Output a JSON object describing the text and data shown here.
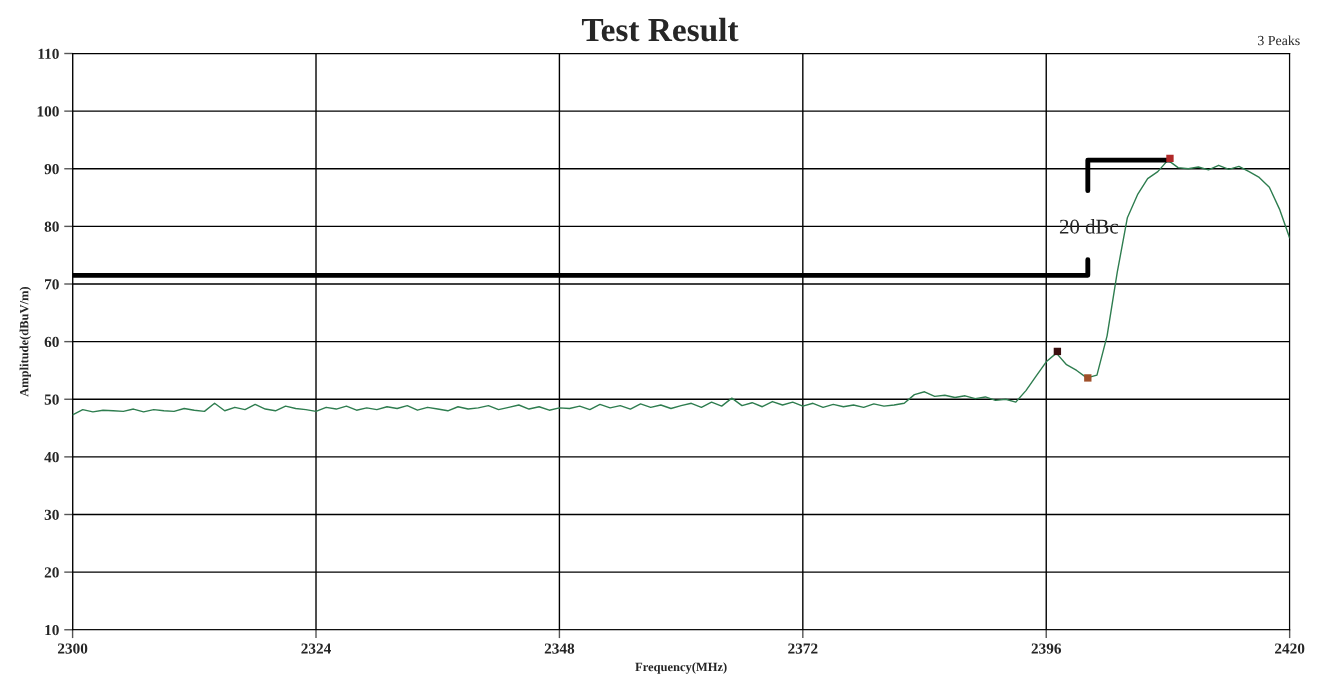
{
  "chart_data": {
    "type": "line",
    "title": "Test Result",
    "xlabel": "Frequency(MHz)",
    "ylabel": "Amplitude(dBuV/m)",
    "xlim": [
      2300,
      2420
    ],
    "xticks": [
      2300,
      2324,
      2348,
      2372,
      2396,
      2420
    ],
    "ylim": [
      10,
      110
    ],
    "yticks": [
      10,
      20,
      30,
      40,
      50,
      60,
      70,
      80,
      90,
      100,
      110
    ],
    "grid": true,
    "legend": false,
    "marker": "none",
    "line_style": "solid",
    "x": [
      2300,
      2301,
      2302,
      2303,
      2304,
      2305,
      2306,
      2307,
      2308,
      2309,
      2310,
      2311,
      2312,
      2313,
      2314,
      2315,
      2316,
      2317,
      2318,
      2319,
      2320,
      2321,
      2322,
      2323,
      2324,
      2325,
      2326,
      2327,
      2328,
      2329,
      2330,
      2331,
      2332,
      2333,
      2334,
      2335,
      2336,
      2337,
      2338,
      2339,
      2340,
      2341,
      2342,
      2343,
      2344,
      2345,
      2346,
      2347,
      2348,
      2349,
      2350,
      2351,
      2352,
      2353,
      2354,
      2355,
      2356,
      2357,
      2358,
      2359,
      2360,
      2361,
      2362,
      2363,
      2364,
      2365,
      2366,
      2367,
      2368,
      2369,
      2370,
      2371,
      2372,
      2373,
      2374,
      2375,
      2376,
      2377,
      2378,
      2379,
      2380,
      2381,
      2382,
      2383,
      2384,
      2385,
      2386,
      2387,
      2388,
      2389,
      2390,
      2391,
      2392,
      2393,
      2394,
      2395,
      2396,
      2397,
      2398,
      2399,
      2400,
      2401,
      2402,
      2403,
      2404,
      2405,
      2406,
      2407,
      2408,
      2409,
      2410,
      2411,
      2412,
      2413,
      2414,
      2415,
      2416,
      2417,
      2418,
      2419,
      2420
    ],
    "series": [
      {
        "color": "#2e7d4f",
        "values": [
          47.3,
          48.2,
          47.8,
          48.1,
          48.0,
          47.9,
          48.3,
          47.8,
          48.2,
          48.0,
          47.9,
          48.4,
          48.1,
          47.9,
          49.3,
          48.0,
          48.6,
          48.2,
          49.1,
          48.3,
          48.0,
          48.8,
          48.4,
          48.2,
          47.9,
          48.6,
          48.3,
          48.8,
          48.1,
          48.5,
          48.2,
          48.7,
          48.4,
          48.9,
          48.1,
          48.6,
          48.3,
          48.0,
          48.7,
          48.3,
          48.5,
          48.9,
          48.2,
          48.6,
          49.0,
          48.3,
          48.7,
          48.1,
          48.5,
          48.4,
          48.8,
          48.2,
          49.1,
          48.5,
          48.9,
          48.3,
          49.2,
          48.6,
          49.0,
          48.4,
          48.9,
          49.3,
          48.6,
          49.5,
          48.8,
          50.2,
          48.9,
          49.4,
          48.7,
          49.6,
          49.0,
          49.5,
          48.8,
          49.3,
          48.6,
          49.1,
          48.7,
          49.0,
          48.6,
          49.2,
          48.8,
          49.0,
          49.3,
          50.8,
          51.3,
          50.5,
          50.7,
          50.3,
          50.6,
          50.1,
          50.4,
          49.8,
          50.0,
          49.5,
          51.5,
          54.0,
          56.5,
          58.0,
          56.0,
          55.0,
          53.7,
          54.2,
          61.0,
          72.0,
          81.5,
          85.5,
          88.3,
          89.5,
          91.5,
          90.2,
          90.0,
          90.3,
          89.8,
          90.6,
          89.9,
          90.4,
          89.5,
          88.5,
          86.8,
          83.0,
          78.0
        ]
      },
      {
        "type": "line",
        "color": "#000000",
        "x": [
          2300,
          2400.1,
          2400.1
        ],
        "values": [
          71.5,
          71.5,
          74.2
        ]
      },
      {
        "type": "line",
        "color": "#000000",
        "x": [
          2400.1,
          2400.1,
          2408.2
        ],
        "values": [
          86.2,
          91.5,
          91.5
        ]
      },
      {
        "type": "scatter",
        "marker": "square",
        "x": [
          2408.2,
          2397.1,
          2400.1
        ],
        "values": [
          91.8,
          58.3,
          53.7
        ],
        "colors": [
          "#b02828",
          "#3a1010",
          "#a0502a"
        ]
      }
    ],
    "annotations": [
      "20 dBc",
      "3 Peaks"
    ]
  }
}
